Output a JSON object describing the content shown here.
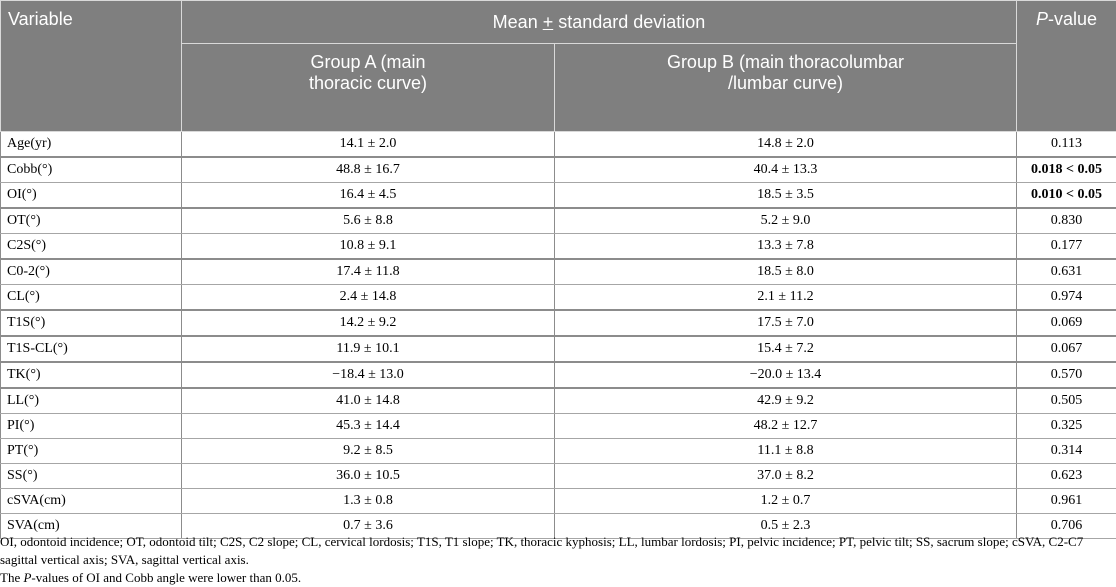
{
  "header": {
    "variable": "Variable",
    "mean_sd_before": "Mean ",
    "mean_sd_pm": "+",
    "mean_sd_after": " standard deviation",
    "p_italic": "P",
    "p_rest": "-value",
    "group_a": "Group A (main thoracic curve)",
    "group_b": "Group B (main thoracolumbar /lumbar curve)"
  },
  "rows": [
    {
      "variable": "Age(yr)",
      "group_a": "14.1 ± 2.0",
      "group_b": "14.8 ± 2.0",
      "p_value": "0.113",
      "bold": false
    },
    {
      "variable": "Cobb(°)",
      "group_a": "48.8 ± 16.7",
      "group_b": "40.4 ± 13.3",
      "p_value": "0.018 < 0.05",
      "bold": true
    },
    {
      "variable": "OI(°)",
      "group_a": "16.4 ± 4.5",
      "group_b": "18.5 ± 3.5",
      "p_value": "0.010 < 0.05",
      "bold": true
    },
    {
      "variable": "OT(°)",
      "group_a": "5.6 ± 8.8",
      "group_b": "5.2 ± 9.0",
      "p_value": "0.830",
      "bold": false
    },
    {
      "variable": "C2S(°)",
      "group_a": "10.8 ± 9.1",
      "group_b": "13.3 ± 7.8",
      "p_value": "0.177",
      "bold": false
    },
    {
      "variable": "C0-2(°)",
      "group_a": "17.4 ± 11.8",
      "group_b": "18.5 ± 8.0",
      "p_value": "0.631",
      "bold": false
    },
    {
      "variable": "CL(°)",
      "group_a": "2.4 ± 14.8",
      "group_b": "2.1 ± 11.2",
      "p_value": "0.974",
      "bold": false
    },
    {
      "variable": "T1S(°)",
      "group_a": "14.2 ± 9.2",
      "group_b": "17.5 ± 7.0",
      "p_value": "0.069",
      "bold": false
    },
    {
      "variable": "T1S-CL(°)",
      "group_a": "11.9 ± 10.1",
      "group_b": "15.4 ± 7.2",
      "p_value": "0.067",
      "bold": false
    },
    {
      "variable": "TK(°)",
      "group_a": "−18.4 ± 13.0",
      "group_b": "−20.0 ± 13.4",
      "p_value": "0.570",
      "bold": false
    },
    {
      "variable": "LL(°)",
      "group_a": "41.0 ± 14.8",
      "group_b": "42.9 ± 9.2",
      "p_value": "0.505",
      "bold": false
    },
    {
      "variable": "PI(°)",
      "group_a": "45.3 ± 14.4",
      "group_b": "48.2 ± 12.7",
      "p_value": "0.325",
      "bold": false
    },
    {
      "variable": "PT(°)",
      "group_a": "9.2 ± 8.5",
      "group_b": "11.1 ± 8.8",
      "p_value": "0.314",
      "bold": false
    },
    {
      "variable": "SS(°)",
      "group_a": "36.0 ± 10.5",
      "group_b": "37.0 ± 8.2",
      "p_value": "0.623",
      "bold": false
    },
    {
      "variable": "cSVA(cm)",
      "group_a": "1.3 ± 0.8",
      "group_b": "1.2 ± 0.7",
      "p_value": "0.961",
      "bold": false
    },
    {
      "variable": "SVA(cm)",
      "group_a": "0.7 ± 3.6",
      "group_b": "0.5 ± 2.3",
      "p_value": "0.706",
      "bold": false
    }
  ],
  "footnotes": {
    "abbreviations": "OI, odontoid incidence; OT, odontoid tilt; C2S, C2 slope; CL, cervical lordosis; T1S, T1 slope; TK, thoracic kyphosis; LL, lumbar lordosis; PI, pelvic incidence; PT, pelvic tilt; SS, sacrum slope; cSVA, C2-C7 sagittal vertical axis; SVA, sagittal vertical axis.",
    "note_before": "The ",
    "note_italic": "P",
    "note_after": "-values of OI and Cobb angle were lower than 0.05."
  }
}
